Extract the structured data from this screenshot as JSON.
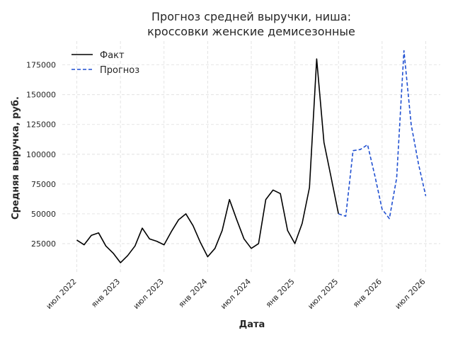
{
  "chart_data": {
    "type": "line",
    "title": [
      "Прогноз средней выручки, ниша:",
      "кроссовки женские демисезонные"
    ],
    "xlabel": "Дата",
    "ylabel": "Средняя выручка, руб.",
    "x_ticks": [
      "июл 2022",
      "янв 2023",
      "июл 2023",
      "янв 2024",
      "июл 2024",
      "янв 2025",
      "июл 2025",
      "янв 2026",
      "июл 2026"
    ],
    "y_ticks": [
      25000,
      50000,
      75000,
      100000,
      125000,
      150000,
      175000
    ],
    "xlim": [
      "2022-05",
      "2026-09"
    ],
    "ylim": [
      0,
      195000
    ],
    "grid": true,
    "legend_position": "top-left",
    "series": [
      {
        "name": "Факт",
        "color": "#000000",
        "style": "solid",
        "x": [
          "2022-07",
          "2022-08",
          "2022-09",
          "2022-10",
          "2022-11",
          "2022-12",
          "2023-01",
          "2023-02",
          "2023-03",
          "2023-04",
          "2023-05",
          "2023-06",
          "2023-07",
          "2023-08",
          "2023-09",
          "2023-10",
          "2023-11",
          "2023-12",
          "2024-01",
          "2024-02",
          "2024-03",
          "2024-04",
          "2024-05",
          "2024-06",
          "2024-07",
          "2024-08",
          "2024-09",
          "2024-10",
          "2024-11",
          "2024-12",
          "2025-01",
          "2025-02",
          "2025-03",
          "2025-04",
          "2025-05",
          "2025-06",
          "2025-07"
        ],
        "values": [
          28000,
          24000,
          32000,
          34000,
          23000,
          17000,
          9000,
          15000,
          23000,
          38000,
          29000,
          27000,
          24000,
          35000,
          45000,
          50000,
          40000,
          26000,
          14000,
          21000,
          36000,
          62000,
          45000,
          29000,
          21000,
          25000,
          62000,
          70000,
          67000,
          36000,
          25000,
          42000,
          72000,
          180000,
          110000,
          80000,
          50000
        ]
      },
      {
        "name": "Прогноз",
        "color": "#1f4fd1",
        "style": "dashed",
        "x": [
          "2025-07",
          "2025-08",
          "2025-09",
          "2025-10",
          "2025-11",
          "2025-12",
          "2026-01",
          "2026-02",
          "2026-03",
          "2026-04",
          "2026-05",
          "2026-06",
          "2026-07"
        ],
        "values": [
          50000,
          48000,
          103000,
          104000,
          108000,
          82000,
          54000,
          46000,
          80000,
          187000,
          125000,
          92000,
          65000
        ]
      }
    ]
  }
}
